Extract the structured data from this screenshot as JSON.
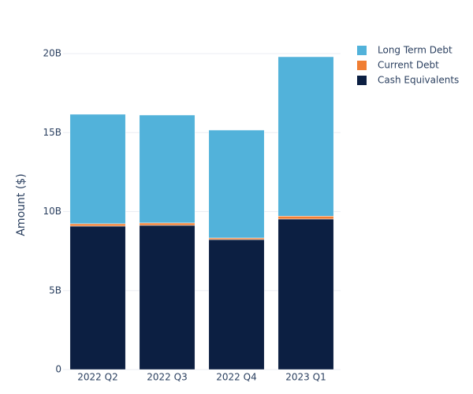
{
  "chart_data": {
    "type": "stacked-bar",
    "y_label": "Amount ($)",
    "categories": [
      "2022 Q2",
      "2022 Q3",
      "2022 Q4",
      "2023 Q1"
    ],
    "series": [
      {
        "name": "Cash Equivalents",
        "color": "#0c1f42",
        "values": [
          9080000000,
          9130000000,
          8230000000,
          9530000000
        ]
      },
      {
        "name": "Current Debt",
        "color": "#f07e33",
        "values": [
          150000000,
          150000000,
          100000000,
          180000000
        ]
      },
      {
        "name": "Long Term Debt",
        "color": "#52b2da",
        "values": [
          6930000000,
          6830000000,
          6830000000,
          10090000000
        ]
      }
    ],
    "ylim": [
      0,
      20000000000
    ],
    "yticks": [
      0,
      {
        "value": 5000000000,
        "label": "5B"
      },
      {
        "value": 10000000000,
        "label": "10B"
      },
      {
        "value": 15000000000,
        "label": "15B"
      },
      {
        "value": 20000000000,
        "label": "20B"
      }
    ],
    "grid": true
  }
}
